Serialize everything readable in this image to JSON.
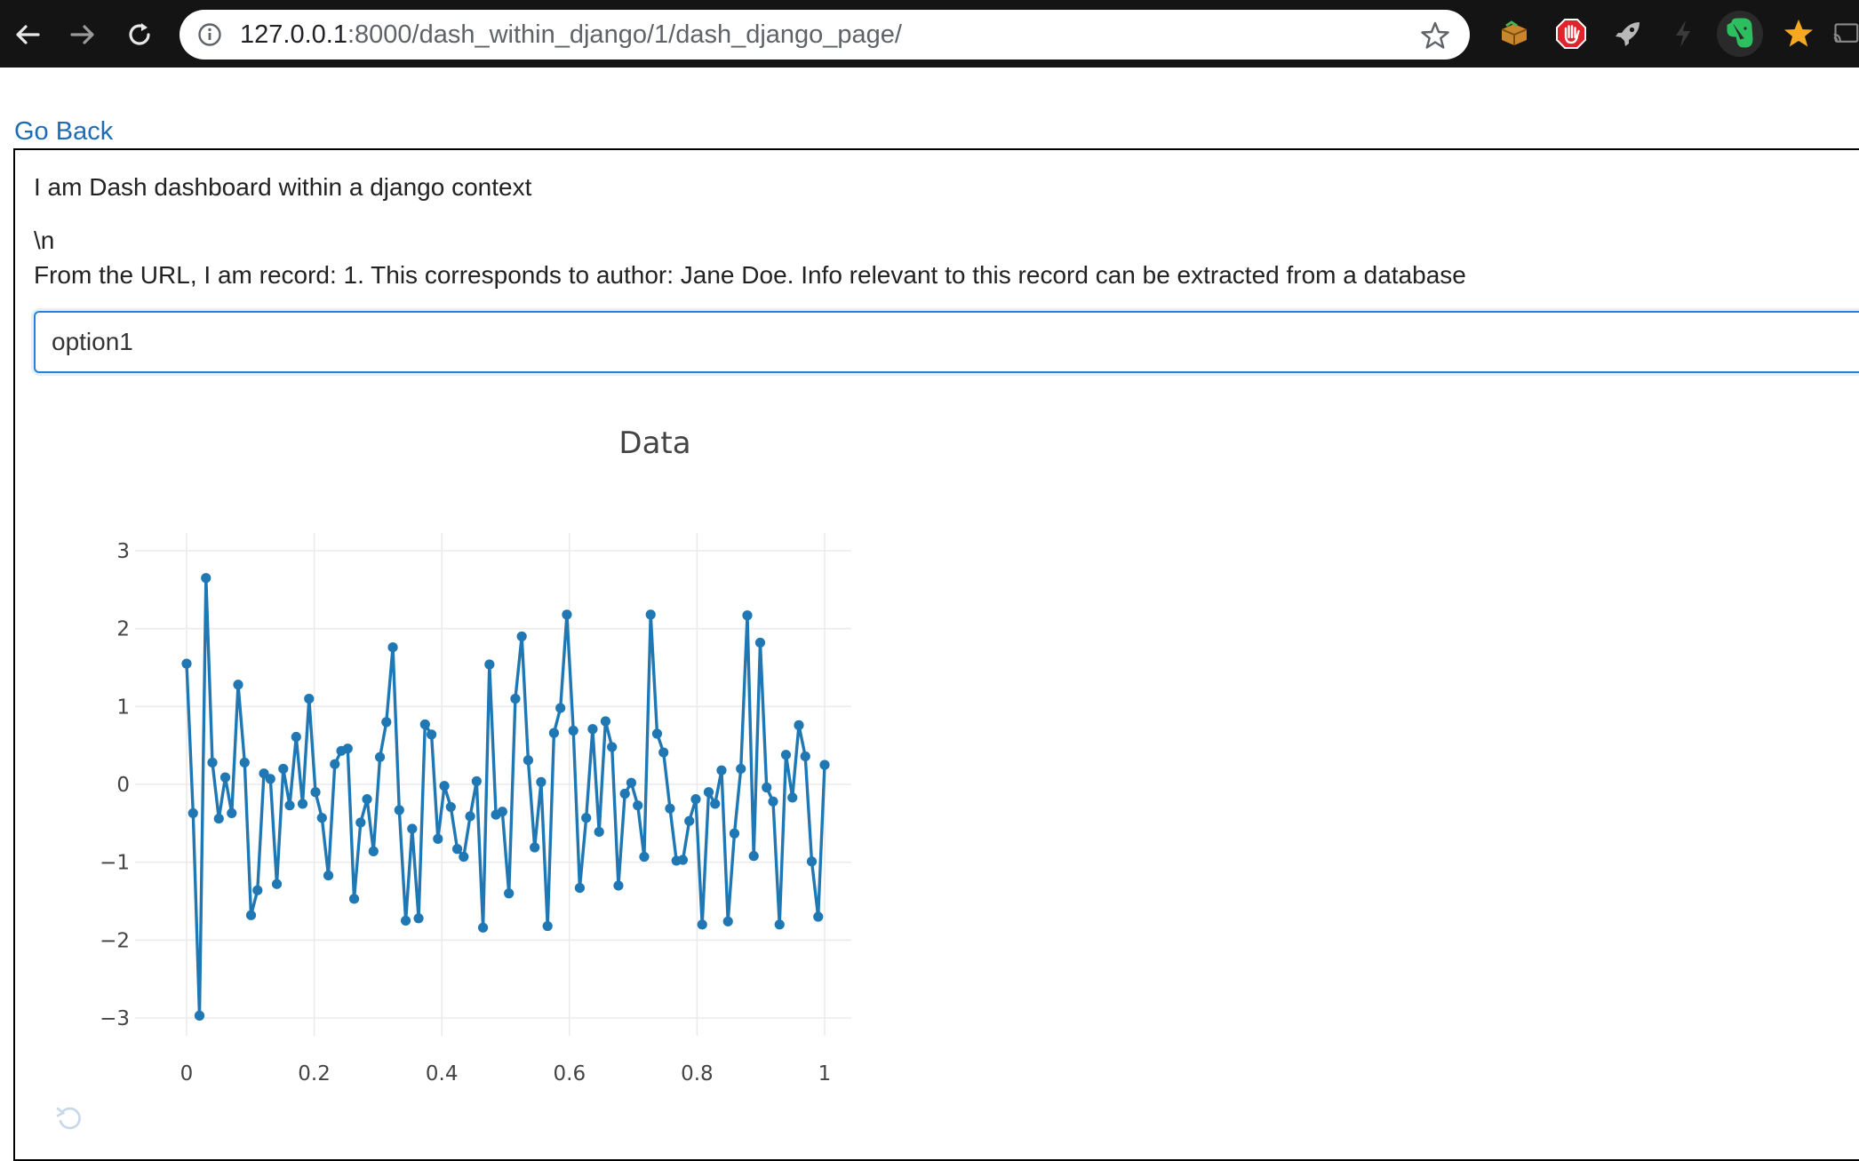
{
  "browser": {
    "url_host": "127.0.0.1",
    "url_rest": ":8000/dash_within_django/1/dash_django_page/",
    "icons": [
      "back-arrow-icon",
      "forward-arrow-icon",
      "reload-icon",
      "info-icon",
      "bookmark-star-icon",
      "extension-box-icon",
      "extension-stop-hand-icon",
      "extension-rocket-icon",
      "extension-bolt-icon",
      "evernote-elephant-icon",
      "extension-star-icon",
      "cast-icon"
    ]
  },
  "page": {
    "go_back": "Go Back",
    "intro": "I am Dash dashboard within a django context",
    "newline": "\\n",
    "record_info": "From the URL, I am record: 1. This corresponds to author: Jane Doe. Info relevant to this record can be extracted from a database",
    "input_value": "option1"
  },
  "colors": {
    "link": "#1e6cb5",
    "line": "#1f77b4",
    "grid": "#ebebeb",
    "input_border": "#2a7fd8"
  },
  "chart_data": {
    "type": "line",
    "title": "Data",
    "xlabel": "",
    "ylabel": "",
    "xlim": [
      0,
      1
    ],
    "ylim": [
      -3.2,
      3.2
    ],
    "xticks": [
      0,
      0.2,
      0.4,
      0.6,
      0.8,
      1
    ],
    "xtick_labels": [
      "0",
      "0.2",
      "0.4",
      "0.6",
      "0.8",
      "1"
    ],
    "yticks": [
      3,
      2,
      1,
      0,
      -1,
      -2,
      -3
    ],
    "ytick_labels": [
      "3",
      "2",
      "1",
      "0",
      "−1",
      "−2",
      "−3"
    ],
    "grid": true,
    "mode": "lines+markers",
    "series": [
      {
        "x": [
          0,
          0.0101,
          0.0202,
          0.0303,
          0.0404,
          0.0505,
          0.0606,
          0.0707,
          0.0808,
          0.0909,
          0.101,
          0.1111,
          0.1212,
          0.1313,
          0.1414,
          0.1515,
          0.1616,
          0.1717,
          0.1818,
          0.1919,
          0.202,
          0.2121,
          0.2222,
          0.2323,
          0.2424,
          0.2525,
          0.2626,
          0.2727,
          0.2828,
          0.2929,
          0.303,
          0.3131,
          0.3232,
          0.3333,
          0.3434,
          0.3535,
          0.3636,
          0.3737,
          0.3838,
          0.3939,
          0.404,
          0.4141,
          0.4242,
          0.4343,
          0.4444,
          0.4545,
          0.4646,
          0.4747,
          0.4848,
          0.4949,
          0.5051,
          0.5152,
          0.5253,
          0.5354,
          0.5455,
          0.5556,
          0.5657,
          0.5758,
          0.5859,
          0.596,
          0.6061,
          0.6162,
          0.6263,
          0.6364,
          0.6465,
          0.6566,
          0.6667,
          0.6768,
          0.6869,
          0.697,
          0.7071,
          0.7172,
          0.7273,
          0.7374,
          0.7475,
          0.7576,
          0.7677,
          0.7778,
          0.7879,
          0.798,
          0.8081,
          0.8182,
          0.8283,
          0.8384,
          0.8485,
          0.8586,
          0.8687,
          0.8788,
          0.8889,
          0.899,
          0.9091,
          0.9192,
          0.9293,
          0.9394,
          0.9495,
          0.9596,
          0.9697,
          0.9798,
          0.9899,
          1
        ],
        "y": [
          1.55,
          -0.37,
          -2.97,
          2.65,
          0.28,
          -0.44,
          0.09,
          -0.37,
          1.28,
          0.28,
          -1.68,
          -1.36,
          0.14,
          0.07,
          -1.28,
          0.2,
          -0.27,
          0.61,
          -0.25,
          1.1,
          -0.1,
          -0.43,
          -1.17,
          0.26,
          0.43,
          0.46,
          -1.47,
          -0.49,
          -0.19,
          -0.86,
          0.35,
          0.8,
          1.76,
          -0.33,
          -1.75,
          -0.57,
          -1.72,
          0.77,
          0.64,
          -0.7,
          -0.02,
          -0.29,
          -0.83,
          -0.93,
          -0.41,
          0.04,
          -1.84,
          1.54,
          -0.39,
          -0.35,
          -1.4,
          1.1,
          1.9,
          0.31,
          -0.81,
          0.03,
          -1.82,
          0.66,
          0.98,
          2.18,
          0.69,
          -1.33,
          -0.43,
          0.71,
          -0.61,
          0.81,
          0.48,
          -1.3,
          -0.12,
          0.02,
          -0.27,
          -0.93,
          2.18,
          0.65,
          0.41,
          -0.31,
          -0.98,
          -0.97,
          -0.47,
          -0.19,
          -1.8,
          -0.1,
          -0.25,
          0.18,
          -1.76,
          -0.63,
          0.2,
          2.17,
          -0.92,
          1.82,
          -0.04,
          -0.22,
          -1.8,
          0.38,
          -0.17,
          0.76,
          0.36,
          -0.99,
          -1.7,
          0.25
        ]
      }
    ]
  }
}
